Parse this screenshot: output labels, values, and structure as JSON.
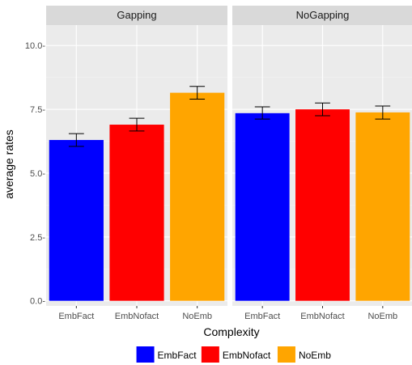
{
  "chart_data": {
    "type": "bar",
    "facets": [
      "Gapping",
      "NoGapping"
    ],
    "categories": [
      "EmbFact",
      "EmbNofact",
      "NoEmb"
    ],
    "series": [
      {
        "facet": "Gapping",
        "values": [
          6.3,
          6.9,
          8.15
        ],
        "error_low": [
          6.05,
          6.65,
          7.9
        ],
        "error_high": [
          6.55,
          7.15,
          8.4
        ]
      },
      {
        "facet": "NoGapping",
        "values": [
          7.35,
          7.5,
          7.38
        ],
        "error_low": [
          7.12,
          7.25,
          7.12
        ],
        "error_high": [
          7.6,
          7.75,
          7.63
        ]
      }
    ],
    "colors": [
      "#0000ff",
      "#ff0000",
      "#ffa500"
    ],
    "xlabel": "Complexity",
    "ylabel": "average rates",
    "ylim": [
      -0.2,
      10.8
    ],
    "yticks": [
      0.0,
      2.5,
      5.0,
      7.5,
      10.0
    ],
    "ytick_labels": [
      "0.0-",
      "2.5-",
      "5.0-",
      "7.5-",
      "10.0-"
    ],
    "grid": true,
    "legend": {
      "placement": "bottom",
      "entries": [
        "EmbFact",
        "EmbNofact",
        "NoEmb"
      ]
    }
  }
}
